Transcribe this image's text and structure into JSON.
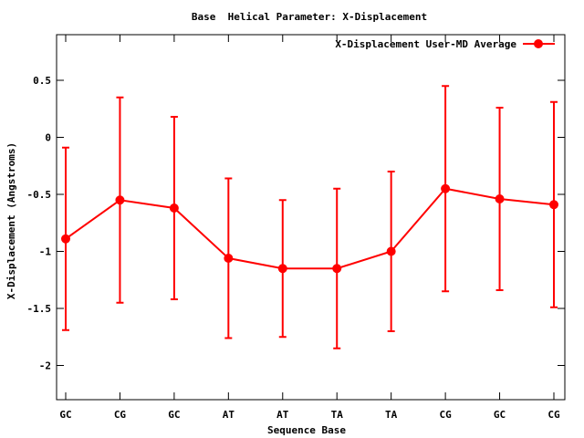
{
  "chart_data": {
    "type": "line",
    "title": "Base  Helical Parameter: X-Displacement",
    "xlabel": "Sequence Base",
    "ylabel": "X-Displacement (Angstroms)",
    "categories": [
      "GC",
      "CG",
      "GC",
      "AT",
      "AT",
      "TA",
      "TA",
      "CG",
      "GC",
      "CG"
    ],
    "ylim": [
      -2.3,
      0.9
    ],
    "yticks": [
      0.5,
      0,
      -0.5,
      -1,
      -1.5,
      -2
    ],
    "ytick_labels": [
      "0.5",
      "0",
      "-0.5",
      "-1",
      "-1.5",
      "-2"
    ],
    "grid": false,
    "legend_position": "top-right",
    "series": [
      {
        "name": "X-Displacement User-MD Average",
        "color": "#ff0000",
        "values": [
          -0.89,
          -0.55,
          -0.62,
          -1.06,
          -1.15,
          -1.15,
          -1.0,
          -0.45,
          -0.54,
          -0.59
        ],
        "err_low": [
          -1.69,
          -1.45,
          -1.42,
          -1.76,
          -1.75,
          -1.85,
          -1.7,
          -1.35,
          -1.34,
          -1.49
        ],
        "err_high": [
          -0.09,
          0.35,
          0.18,
          -0.36,
          -0.55,
          -0.45,
          -0.3,
          0.45,
          0.26,
          0.31
        ]
      }
    ]
  }
}
